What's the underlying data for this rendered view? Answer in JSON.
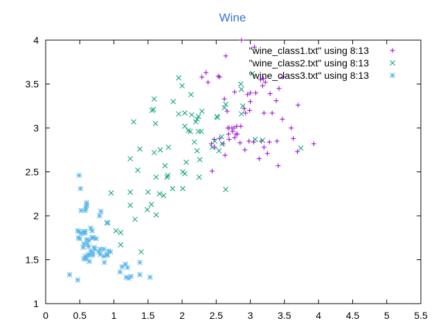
{
  "chart_data": {
    "type": "scatter",
    "title": "Wine",
    "xlabel": "",
    "ylabel": "",
    "xlim": [
      0,
      5.5
    ],
    "ylim": [
      1,
      4
    ],
    "x_ticks": [
      "0",
      "0.5",
      "1",
      "1.5",
      "2",
      "2.5",
      "3",
      "3.5",
      "4",
      "4.5",
      "5",
      "5.5"
    ],
    "y_ticks": [
      "1",
      "1.5",
      "2",
      "2.5",
      "3",
      "3.5",
      "4"
    ],
    "x_tick_values": [
      0,
      0.5,
      1,
      1.5,
      2,
      2.5,
      3,
      3.5,
      4,
      4.5,
      5,
      5.5
    ],
    "y_tick_values": [
      1,
      1.5,
      2,
      2.5,
      3,
      3.5,
      4
    ],
    "grid": false,
    "legend_position": "top-right",
    "title_color": "#3a6fd8",
    "series": [
      {
        "name": "\"wine_class1.txt\" using 8:13",
        "marker": "plus",
        "color": "#9400d3",
        "points": [
          [
            2.29,
            3.58
          ],
          [
            2.35,
            3.63
          ],
          [
            2.38,
            3.52
          ],
          [
            2.53,
            3.59
          ],
          [
            2.55,
            3.58
          ],
          [
            2.64,
            3.82
          ],
          [
            2.87,
            4.0
          ],
          [
            3.06,
            3.92
          ],
          [
            3.0,
            3.4
          ],
          [
            2.96,
            3.38
          ],
          [
            3.08,
            3.4
          ],
          [
            3.15,
            3.55
          ],
          [
            3.19,
            3.56
          ],
          [
            3.22,
            3.52
          ],
          [
            3.29,
            3.39
          ],
          [
            3.42,
            3.45
          ],
          [
            3.47,
            3.58
          ],
          [
            3.18,
            3.48
          ],
          [
            2.77,
            3.41
          ],
          [
            2.62,
            3.33
          ],
          [
            2.99,
            3.2
          ],
          [
            2.66,
            3.19
          ],
          [
            2.91,
            3.22
          ],
          [
            2.93,
            3.17
          ],
          [
            3.2,
            3.17
          ],
          [
            3.32,
            3.17
          ],
          [
            3.0,
            3.3
          ],
          [
            3.38,
            3.31
          ],
          [
            3.7,
            3.26
          ],
          [
            3.47,
            3.1
          ],
          [
            3.6,
            3.0
          ],
          [
            3.63,
            2.88
          ],
          [
            3.69,
            2.73
          ],
          [
            3.93,
            2.82
          ],
          [
            3.39,
            2.85
          ],
          [
            3.28,
            2.84
          ],
          [
            3.16,
            2.85
          ],
          [
            3.2,
            2.78
          ],
          [
            3.05,
            2.84
          ],
          [
            2.92,
            2.75
          ],
          [
            2.86,
            3.02
          ],
          [
            2.81,
            2.93
          ],
          [
            2.74,
            2.96
          ],
          [
            2.76,
            3.0
          ],
          [
            2.69,
            3.0
          ],
          [
            2.73,
            3.0
          ],
          [
            2.67,
            3.0
          ],
          [
            2.8,
            3.02
          ],
          [
            2.79,
            2.93
          ],
          [
            2.77,
            2.89
          ],
          [
            2.69,
            2.87
          ],
          [
            2.68,
            2.93
          ],
          [
            2.6,
            2.82
          ],
          [
            2.47,
            2.87
          ],
          [
            2.55,
            2.88
          ],
          [
            2.43,
            2.82
          ],
          [
            2.48,
            2.78
          ],
          [
            2.44,
            2.51
          ],
          [
            2.63,
            2.69
          ],
          [
            2.85,
            2.83
          ],
          [
            3.13,
            2.65
          ],
          [
            3.41,
            2.57
          ],
          [
            3.25,
            2.71
          ],
          [
            2.98,
            2.85
          ]
        ]
      },
      {
        "name": "\"wine_class2.txt\" using 8:13",
        "marker": "cross",
        "color": "#009e73",
        "points": [
          [
            1.95,
            3.57
          ],
          [
            2.0,
            3.48
          ],
          [
            2.86,
            3.5
          ],
          [
            3.03,
            3.62
          ],
          [
            2.87,
            3.44
          ],
          [
            2.13,
            3.38
          ],
          [
            1.87,
            3.3
          ],
          [
            1.59,
            3.33
          ],
          [
            1.56,
            3.2
          ],
          [
            1.58,
            3.21
          ],
          [
            2.14,
            3.15
          ],
          [
            2.22,
            3.1
          ],
          [
            2.29,
            3.19
          ],
          [
            2.24,
            3.13
          ],
          [
            2.2,
            3.07
          ],
          [
            1.95,
            3.16
          ],
          [
            2.04,
            3.17
          ],
          [
            2.62,
            3.23
          ],
          [
            2.64,
            3.27
          ],
          [
            2.89,
            3.25
          ],
          [
            2.51,
            3.13
          ],
          [
            2.52,
            3.12
          ],
          [
            2.87,
            3.16
          ],
          [
            1.29,
            3.07
          ],
          [
            1.61,
            3.05
          ],
          [
            2.04,
            3.02
          ],
          [
            2.12,
            2.96
          ],
          [
            2.24,
            2.96
          ],
          [
            2.28,
            2.96
          ],
          [
            2.09,
            2.97
          ],
          [
            2.58,
            2.9
          ],
          [
            2.48,
            2.85
          ],
          [
            2.59,
            2.82
          ],
          [
            2.44,
            2.78
          ],
          [
            2.18,
            2.84
          ],
          [
            2.22,
            2.74
          ],
          [
            1.8,
            2.78
          ],
          [
            1.68,
            2.75
          ],
          [
            1.38,
            2.76
          ],
          [
            1.59,
            2.72
          ],
          [
            2.54,
            2.74
          ],
          [
            2.26,
            2.64
          ],
          [
            1.24,
            2.65
          ],
          [
            2.06,
            2.61
          ],
          [
            1.75,
            2.57
          ],
          [
            1.35,
            2.52
          ],
          [
            2.01,
            2.5
          ],
          [
            1.79,
            2.46
          ],
          [
            1.78,
            2.44
          ],
          [
            1.62,
            2.44
          ],
          [
            2.25,
            2.44
          ],
          [
            2.01,
            2.31
          ],
          [
            1.86,
            2.31
          ],
          [
            1.67,
            2.25
          ],
          [
            1.73,
            2.23
          ],
          [
            1.5,
            2.27
          ],
          [
            1.24,
            2.27
          ],
          [
            2.64,
            2.3
          ],
          [
            1.55,
            2.13
          ],
          [
            1.24,
            2.12
          ],
          [
            1.62,
            2.01
          ],
          [
            1.49,
            2.07
          ],
          [
            1.31,
            1.96
          ],
          [
            1.1,
            1.81
          ],
          [
            0.96,
            2.26
          ],
          [
            1.03,
            1.83
          ],
          [
            0.9,
            1.92
          ],
          [
            1.1,
            1.67
          ],
          [
            1.4,
            1.59
          ],
          [
            3.07,
            2.87
          ],
          [
            3.18,
            2.86
          ],
          [
            3.74,
            2.77
          ],
          [
            2.04,
            2.48
          ]
        ]
      },
      {
        "name": "\"wine_class3.txt\" using 8:13",
        "marker": "star",
        "color": "#56b4e9",
        "points": [
          [
            0.49,
            2.46
          ],
          [
            0.51,
            2.31
          ],
          [
            0.6,
            2.15
          ],
          [
            0.6,
            2.12
          ],
          [
            0.59,
            2.09
          ],
          [
            0.58,
            2.06
          ],
          [
            0.52,
            2.06
          ],
          [
            0.81,
            2.05
          ],
          [
            0.79,
            2.0
          ],
          [
            0.47,
            1.83
          ],
          [
            0.49,
            1.82
          ],
          [
            0.56,
            1.82
          ],
          [
            0.58,
            1.82
          ],
          [
            0.52,
            1.8
          ],
          [
            0.57,
            1.8
          ],
          [
            0.48,
            1.75
          ],
          [
            0.5,
            1.74
          ],
          [
            0.66,
            1.86
          ],
          [
            0.6,
            1.73
          ],
          [
            0.63,
            1.72
          ],
          [
            0.7,
            1.75
          ],
          [
            0.68,
            1.75
          ],
          [
            0.74,
            1.74
          ],
          [
            0.61,
            1.68
          ],
          [
            0.56,
            1.68
          ],
          [
            0.55,
            1.64
          ],
          [
            0.63,
            1.65
          ],
          [
            0.71,
            1.64
          ],
          [
            0.72,
            1.62
          ],
          [
            0.78,
            1.59
          ],
          [
            0.8,
            1.62
          ],
          [
            0.85,
            1.62
          ],
          [
            0.92,
            1.6
          ],
          [
            0.66,
            1.6
          ],
          [
            0.69,
            1.58
          ],
          [
            0.64,
            1.56
          ],
          [
            0.69,
            1.55
          ],
          [
            0.62,
            1.55
          ],
          [
            0.8,
            1.56
          ],
          [
            0.9,
            1.55
          ],
          [
            0.85,
            1.54
          ],
          [
            0.56,
            1.51
          ],
          [
            0.6,
            1.51
          ],
          [
            0.58,
            1.54
          ],
          [
            0.64,
            1.48
          ],
          [
            0.86,
            1.47
          ],
          [
            0.95,
            1.59
          ],
          [
            0.9,
            1.56
          ],
          [
            1.17,
            1.45
          ],
          [
            1.12,
            1.42
          ],
          [
            1.2,
            1.41
          ],
          [
            1.09,
            1.36
          ],
          [
            1.38,
            1.47
          ],
          [
            0.68,
            1.83
          ],
          [
            1.18,
            1.3
          ],
          [
            1.22,
            1.29
          ],
          [
            1.25,
            1.31
          ],
          [
            1.38,
            1.33
          ],
          [
            1.53,
            1.3
          ],
          [
            0.35,
            1.33
          ],
          [
            0.47,
            1.27
          ],
          [
            0.91,
            1.92
          ]
        ]
      }
    ]
  }
}
